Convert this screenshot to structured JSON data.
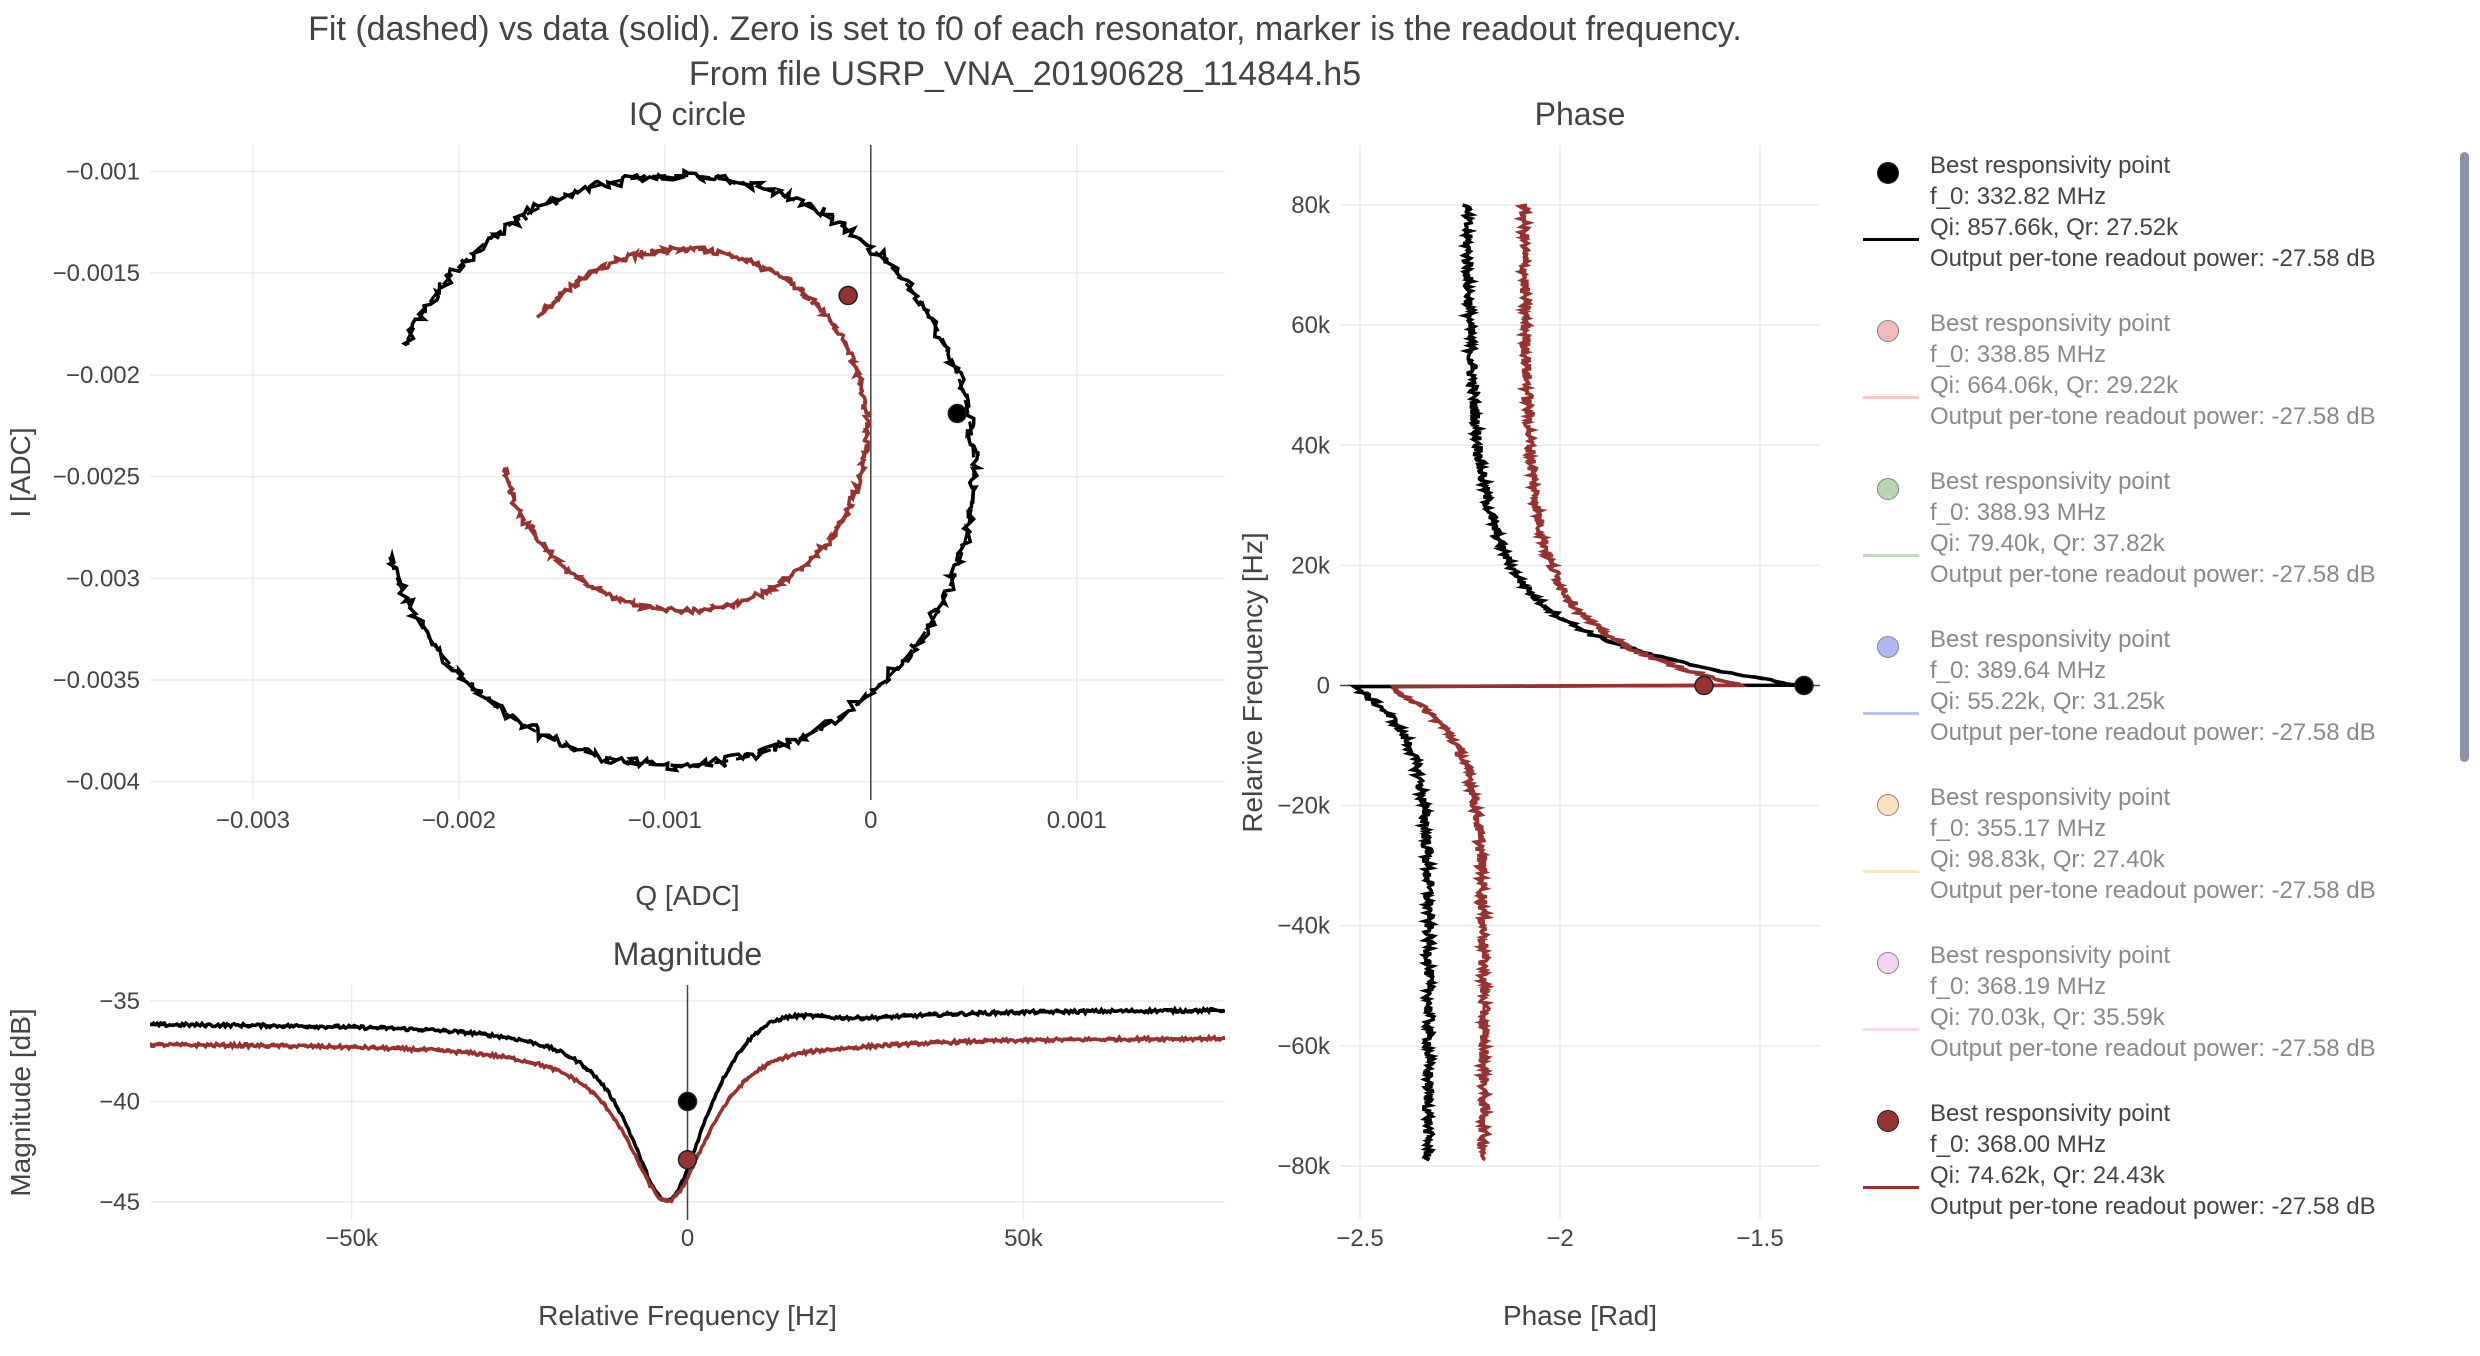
{
  "title_line1": "Fit (dashed) vs data (solid). Zero is set to f0 of each resonator, marker is the readout frequency.",
  "title_line2": "From file USRP_VNA_20190628_114844.h5",
  "chart_data": [
    {
      "type": "scatter",
      "title": "IQ circle",
      "xlabel": "Q [ADC]",
      "ylabel": "I [ADC]",
      "xlim": [
        -0.0035,
        0.00172
      ],
      "ylim": [
        -0.00409,
        -0.00087
      ],
      "xticks": [
        -0.003,
        -0.002,
        -0.001,
        0,
        0.001
      ],
      "xtick_labels": [
        "−0.003",
        "−0.002",
        "−0.001",
        "0",
        "0.001"
      ],
      "yticks": [
        -0.001,
        -0.0015,
        -0.002,
        -0.0025,
        -0.003,
        -0.0035,
        -0.004
      ],
      "ytick_labels": [
        "−0.001",
        "−0.0015",
        "−0.002",
        "−0.0025",
        "−0.003",
        "−0.0035",
        "−0.004"
      ],
      "grid": true,
      "series": [
        {
          "name": "Qi: 857.66k, Qr: 27.52k",
          "color": "#000000",
          "circle": {
            "cx": -0.00095,
            "cy": -0.00247,
            "r": 0.00145,
            "start_deg": 197,
            "end_deg": 515
          },
          "marker": [
            0.00042,
            -0.00219
          ]
        },
        {
          "name": "Qi: 74.62k, Qr: 24.43k",
          "color": "#963232",
          "circle": {
            "cx": -0.00091,
            "cy": -0.00227,
            "r": 0.00089,
            "start_deg": 192,
            "end_deg": 502
          },
          "marker": [
            -0.00011,
            -0.00161
          ]
        }
      ]
    },
    {
      "type": "line",
      "title": "Magnitude",
      "xlabel": "Relative Frequency [Hz]",
      "ylabel": "Magnitude [dB]",
      "xlim": [
        -80000,
        80000
      ],
      "ylim": [
        -45.9,
        -34.2
      ],
      "xticks": [
        -50000,
        0,
        50000
      ],
      "xtick_labels": [
        "−50k",
        "0",
        "50k"
      ],
      "yticks": [
        -35,
        -40,
        -45
      ],
      "ytick_labels": [
        "−35",
        "−40",
        "−45"
      ],
      "grid": true,
      "series": [
        {
          "name": "Qi: 857.66k, Qr: 27.52k",
          "color": "#000000",
          "base_left": -36.1,
          "base_right": -35.4,
          "dip_depth": 9.2,
          "dip_f": -3000,
          "width": 7000,
          "bump": 1.0,
          "marker": [
            0,
            -40.0
          ]
        },
        {
          "name": "Qi: 74.62k, Qr: 24.43k",
          "color": "#963232",
          "base_left": -37.1,
          "base_right": -36.8,
          "dip_depth": 8.0,
          "dip_f": -3000,
          "width": 7500,
          "bump": 0.3,
          "marker": [
            0,
            -42.9
          ]
        }
      ]
    },
    {
      "type": "line",
      "title": "Phase",
      "xlabel": "Phase [Rad]",
      "ylabel": "Relarive Frequency [Hz]",
      "xlim": [
        -2.55,
        -1.35
      ],
      "ylim": [
        -89000,
        90000
      ],
      "xticks": [
        -2.5,
        -2,
        -1.5
      ],
      "xtick_labels": [
        "−2.5",
        "−2",
        "−1.5"
      ],
      "yticks": [
        80000,
        60000,
        40000,
        20000,
        0,
        -20000,
        -40000,
        -60000,
        -80000
      ],
      "ytick_labels": [
        "80k",
        "60k",
        "40k",
        "20k",
        "0",
        "−20k",
        "−40k",
        "−60k",
        "−80k"
      ],
      "grid": true,
      "series": [
        {
          "name": "Qi: 857.66k, Qr: 27.52k",
          "color": "#000000",
          "top": -2.25,
          "bottom": -2.33,
          "peak": -1.4,
          "trough": -2.52,
          "width": 8000,
          "marker": [
            -1.39,
            0
          ]
        },
        {
          "name": "Qi: 74.62k, Qr: 24.43k",
          "color": "#963232",
          "top": -2.1,
          "bottom": -2.19,
          "peak": -1.55,
          "trough": -2.43,
          "width": 8500,
          "marker": [
            -1.64,
            0
          ]
        }
      ]
    }
  ],
  "legend": [
    {
      "label1": "Best responsivity point",
      "label2": "f_0: 332.82 MHz",
      "label3": "Qi: 857.66k, Qr: 27.52k",
      "label4": "Output per-tone readout power: -27.58 dB",
      "marker_color": "#000000",
      "line_color": "#000000",
      "visible": true
    },
    {
      "label1": "Best responsivity point",
      "label2": "f_0: 338.85 MHz",
      "label3": "Qi: 664.06k, Qr: 29.22k",
      "label4": "Output per-tone readout power: -27.58 dB",
      "marker_color": "#e8827f",
      "line_color": "#ef9a9a",
      "visible": false
    },
    {
      "label1": "Best responsivity point",
      "label2": "f_0: 388.93 MHz",
      "label3": "Qi: 79.40k, Qr: 37.82k",
      "label4": "Output per-tone readout power: -27.58 dB",
      "marker_color": "#7fb06f",
      "line_color": "#8fc07f",
      "visible": false
    },
    {
      "label1": "Best responsivity point",
      "label2": "f_0: 389.64 MHz",
      "label3": "Qi: 55.22k, Qr: 31.25k",
      "label4": "Output per-tone readout power: -27.58 dB",
      "marker_color": "#6f7fee",
      "line_color": "#7f8ff4",
      "visible": false
    },
    {
      "label1": "Best responsivity point",
      "label2": "f_0: 355.17 MHz",
      "label3": "Qi: 98.83k, Qr: 27.40k",
      "label4": "Output per-tone readout power: -27.58 dB",
      "marker_color": "#f8c98a",
      "line_color": "#f8d08e",
      "visible": false
    },
    {
      "label1": "Best responsivity point",
      "label2": "f_0: 368.19 MHz",
      "label3": "Qi: 70.03k, Qr: 35.59k",
      "label4": "Output per-tone readout power: -27.58 dB",
      "marker_color": "#e8b0e8",
      "line_color": "#efb8ef",
      "visible": false
    },
    {
      "label1": "Best responsivity point",
      "label2": "f_0: 368.00 MHz",
      "label3": "Qi: 74.62k, Qr: 24.43k",
      "label4": "Output per-tone readout power: -27.58 dB",
      "marker_color": "#963232",
      "line_color": "#963232",
      "visible": true
    }
  ]
}
